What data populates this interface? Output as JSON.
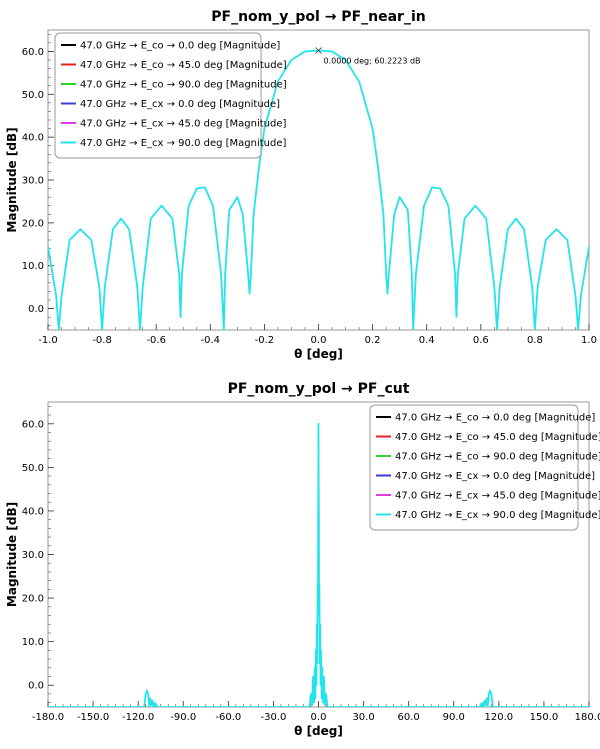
{
  "chart_data": [
    {
      "type": "line",
      "title": "PF_nom_y_pol → PF_near_in",
      "xlabel": "θ [deg]",
      "ylabel": "Magnitude [dB]",
      "xlim": [
        -1.0,
        1.0
      ],
      "ylim": [
        -5,
        65
      ],
      "x_ticks": [
        "-1.0",
        "-0.8",
        "-0.6",
        "-0.4",
        "-0.2",
        "0.0",
        "0.2",
        "0.4",
        "0.6",
        "0.8",
        "1.0"
      ],
      "y_ticks": [
        "0.0",
        "10.0",
        "20.0",
        "30.0",
        "40.0",
        "50.0",
        "60.0"
      ],
      "grid": false,
      "legend_position": "top-left",
      "annotation": {
        "text": "0.0000 deg; 60.2223 dB",
        "x": 0.0,
        "y": 60.2223
      },
      "series": [
        {
          "name": "47.0 GHz → E_co → 0.0 deg [Magnitude]",
          "color": "#000000",
          "visible_trace": false
        },
        {
          "name": "47.0 GHz → E_co → 45.0 deg [Magnitude]",
          "color": "#e8231e",
          "visible_trace": false
        },
        {
          "name": "47.0 GHz → E_co → 90.0 deg [Magnitude]",
          "color": "#2fd12f",
          "visible_trace": false
        },
        {
          "name": "47.0 GHz → E_cx → 0.0 deg [Magnitude]",
          "color": "#3b3bdc",
          "visible_trace": false
        },
        {
          "name": "47.0 GHz → E_cx → 45.0 deg [Magnitude]",
          "color": "#e23be2",
          "visible_trace": false
        },
        {
          "name": "47.0 GHz → E_cx → 90.0 deg [Magnitude]",
          "color": "#22e4ea",
          "visible_trace": true,
          "x": [
            -1.0,
            -0.97,
            -0.96,
            -0.95,
            -0.92,
            -0.88,
            -0.84,
            -0.81,
            -0.8,
            -0.79,
            -0.76,
            -0.73,
            -0.7,
            -0.67,
            -0.66,
            -0.65,
            -0.62,
            -0.58,
            -0.54,
            -0.515,
            -0.51,
            -0.505,
            -0.48,
            -0.45,
            -0.42,
            -0.39,
            -0.36,
            -0.35,
            -0.345,
            -0.33,
            -0.3,
            -0.28,
            -0.26,
            -0.255,
            -0.25,
            -0.24,
            -0.22,
            -0.2,
            -0.15,
            -0.1,
            -0.05,
            0.0,
            0.05,
            0.1,
            0.15,
            0.2,
            0.22,
            0.24,
            0.25,
            0.255,
            0.26,
            0.28,
            0.3,
            0.33,
            0.345,
            0.35,
            0.36,
            0.39,
            0.42,
            0.45,
            0.48,
            0.505,
            0.51,
            0.515,
            0.54,
            0.58,
            0.62,
            0.65,
            0.66,
            0.67,
            0.7,
            0.73,
            0.76,
            0.79,
            0.8,
            0.81,
            0.84,
            0.88,
            0.92,
            0.95,
            0.96,
            0.97,
            1.0
          ],
          "y": [
            14.5,
            3,
            -5,
            3,
            16,
            18.5,
            16,
            5,
            -5,
            5,
            18.5,
            21,
            18.5,
            5,
            -5,
            5,
            21,
            24,
            21,
            8,
            -2,
            8,
            24,
            28,
            28.3,
            24,
            8,
            -5,
            8,
            23,
            26,
            22,
            8,
            3.5,
            8,
            22,
            33,
            42,
            53,
            58,
            60,
            60.2223,
            60,
            58,
            53,
            42,
            33,
            22,
            8,
            3.5,
            8,
            22,
            26,
            23,
            8,
            -5,
            8,
            24,
            28.3,
            28,
            24,
            8,
            -2,
            8,
            21,
            24,
            21,
            5,
            -5,
            5,
            18.5,
            21,
            18.5,
            5,
            -5,
            5,
            16,
            18.5,
            16,
            3,
            -5,
            3,
            14.5
          ]
        }
      ]
    },
    {
      "type": "line",
      "title": "PF_nom_y_pol → PF_cut",
      "xlabel": "θ [deg]",
      "ylabel": "Magnitude [dB]",
      "xlim": [
        -180,
        180
      ],
      "ylim": [
        -5,
        65
      ],
      "x_ticks": [
        "-180.0",
        "-150.0",
        "-120.0",
        "-90.0",
        "-60.0",
        "-30.0",
        "0.0",
        "30.0",
        "60.0",
        "90.0",
        "120.0",
        "150.0",
        "180.0"
      ],
      "y_ticks": [
        "0.0",
        "10.0",
        "20.0",
        "30.0",
        "40.0",
        "50.0",
        "60.0"
      ],
      "grid": false,
      "legend_position": "top-right",
      "series": [
        {
          "name": "47.0 GHz → E_co → 0.0 deg [Magnitude]",
          "color": "#000000",
          "visible_trace": false
        },
        {
          "name": "47.0 GHz → E_co → 45.0 deg [Magnitude]",
          "color": "#e8231e",
          "visible_trace": false
        },
        {
          "name": "47.0 GHz → E_co → 90.0 deg [Magnitude]",
          "color": "#2fd12f",
          "visible_trace": false
        },
        {
          "name": "47.0 GHz → E_cx → 0.0 deg [Magnitude]",
          "color": "#3b3bdc",
          "visible_trace": false
        },
        {
          "name": "47.0 GHz → E_cx → 45.0 deg [Magnitude]",
          "color": "#e23be2",
          "visible_trace": false
        },
        {
          "name": "47.0 GHz → E_cx → 90.0 deg [Magnitude]",
          "color": "#22e4ea",
          "visible_trace": true,
          "x": [
            -180,
            -116,
            -115,
            -114,
            -113.2,
            -112.5,
            -112,
            -111.3,
            -110.6,
            -110,
            -109.3,
            -108.7,
            -108,
            -107.4,
            -106.5,
            -6,
            -5,
            -4.2,
            -3.6,
            -3,
            -2.5,
            -2.1,
            -1.7,
            -1.4,
            -1.1,
            -0.8,
            -0.6,
            -0.4,
            -0.25,
            -0.12,
            0,
            0.12,
            0.25,
            0.4,
            0.6,
            0.8,
            1.1,
            1.4,
            1.7,
            2.1,
            2.5,
            3,
            3.6,
            4.2,
            5,
            6,
            106.5,
            107.4,
            108,
            108.7,
            109.3,
            110,
            110.6,
            111.3,
            112,
            112.5,
            113.2,
            114,
            115,
            116,
            180
          ],
          "y": [
            -5,
            -5,
            -2,
            -1.2,
            -2.5,
            -5,
            -3,
            -4.5,
            -3.5,
            -5,
            -4,
            -5,
            -4.3,
            -5,
            -5,
            -5,
            -2,
            -4.5,
            2,
            -4,
            4,
            -3,
            8,
            0,
            14,
            5,
            23,
            16,
            38,
            45,
            60,
            45,
            38,
            16,
            23,
            5,
            14,
            0,
            8,
            -3,
            4,
            -4,
            2,
            -4.5,
            -2,
            -5,
            -5,
            -5,
            -4.3,
            -5,
            -4,
            -5,
            -3.5,
            -4.5,
            -3,
            -5,
            -2.5,
            -1.2,
            -2,
            -5,
            -5
          ]
        }
      ]
    }
  ]
}
